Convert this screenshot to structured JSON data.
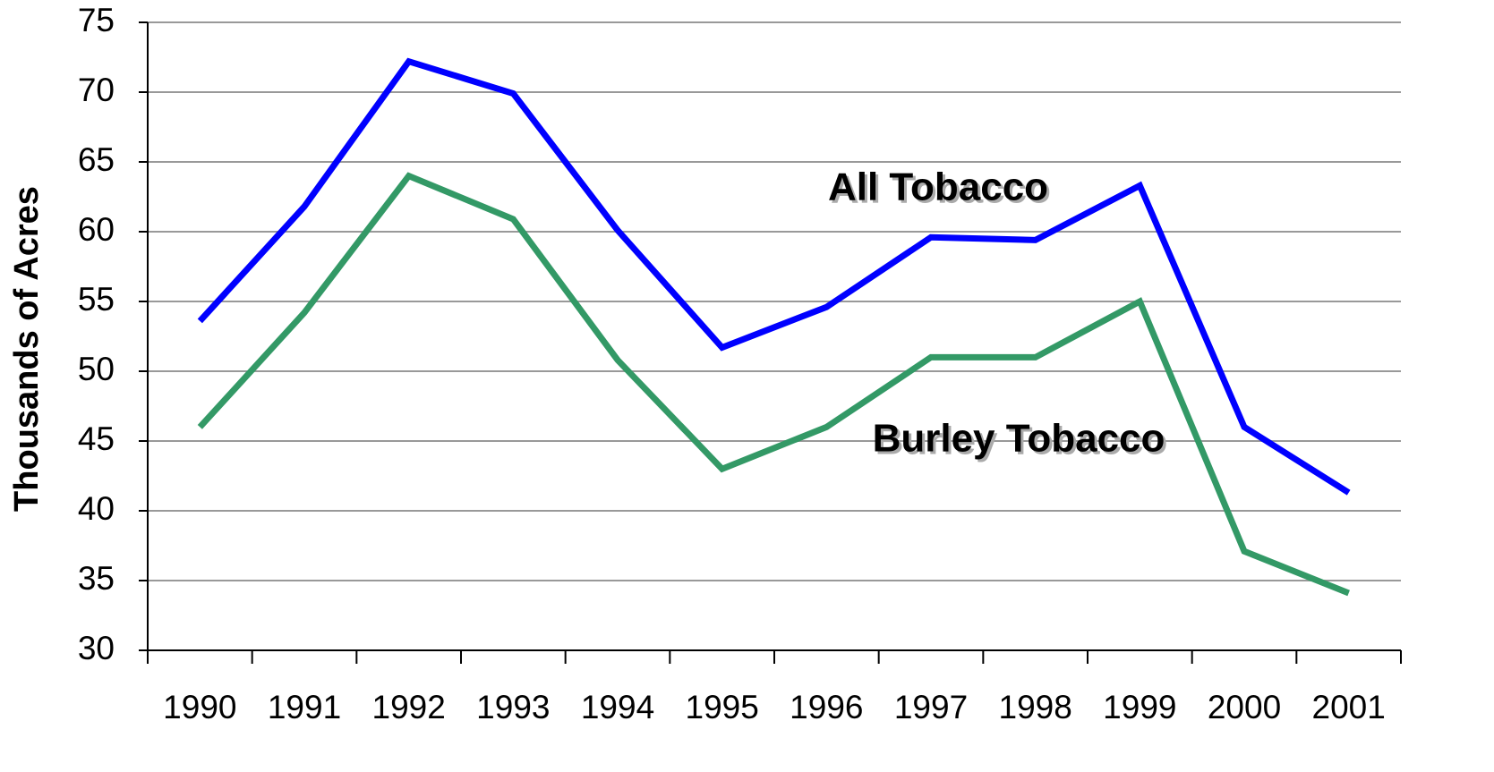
{
  "chart_data": {
    "type": "line",
    "y_label": "Thousands of Acres",
    "categories": [
      "1990",
      "1991",
      "1992",
      "1993",
      "1994",
      "1995",
      "1996",
      "1997",
      "1998",
      "1999",
      "2000",
      "2001"
    ],
    "series": [
      {
        "name": "All Tobacco",
        "color": "#0000ff",
        "values": [
          53.6,
          61.8,
          72.2,
          69.9,
          60.1,
          51.7,
          54.6,
          59.6,
          59.4,
          63.3,
          46.0,
          41.3
        ]
      },
      {
        "name": "Burley Tobacco",
        "color": "#339966",
        "values": [
          46.0,
          54.2,
          64.0,
          60.9,
          50.8,
          43.0,
          46.0,
          51.0,
          51.0,
          55.0,
          37.1,
          34.1
        ]
      }
    ],
    "ylim": [
      30,
      75
    ],
    "yticks": [
      30,
      35,
      40,
      45,
      50,
      55,
      60,
      65,
      70,
      75
    ],
    "grid": true
  }
}
